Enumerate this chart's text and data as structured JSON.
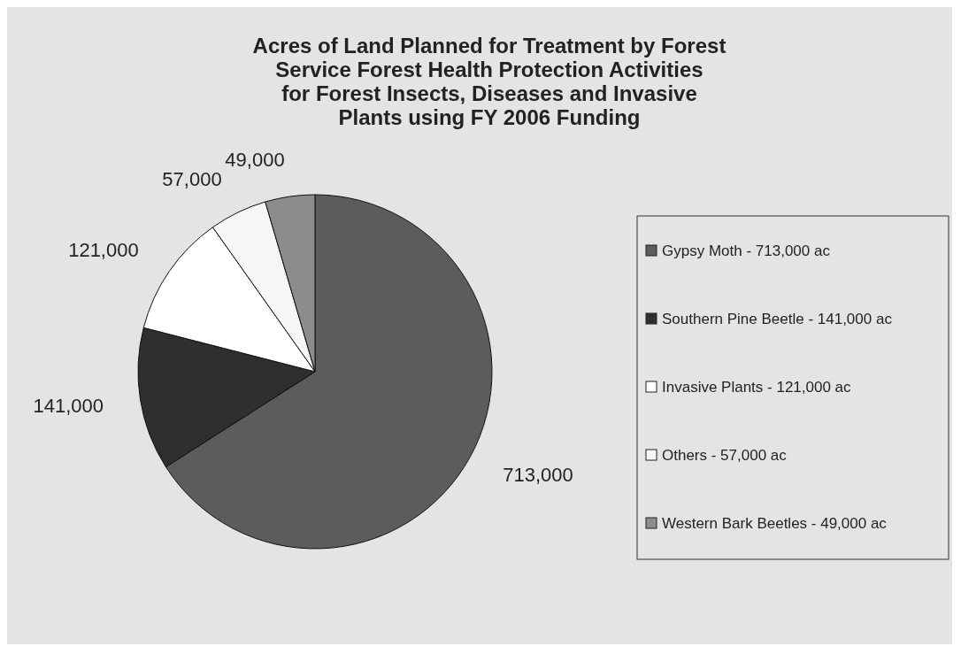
{
  "chart_data": {
    "type": "pie",
    "title": "Acres of Land Planned for Treatment by Forest Service Forest Health Protection Activities for Forest Insects, Diseases and Invasive Plants using FY 2006 Funding",
    "categories": [
      "Gypsy Moth - 713,000 ac",
      "Southern Pine Beetle - 141,000 ac",
      "Invasive Plants - 121,000 ac",
      "Others - 57,000 ac",
      "Western Bark Beetles - 49,000 ac"
    ],
    "values": [
      713000,
      141000,
      121000,
      57000,
      49000
    ],
    "value_labels": [
      "713,000",
      "141,000",
      "121,000",
      "57,000",
      "49,000"
    ],
    "colors": [
      "#5c5c5c",
      "#2f2f2f",
      "#ffffff",
      "#f6f6f6",
      "#8c8c8c"
    ],
    "legend": "right"
  }
}
